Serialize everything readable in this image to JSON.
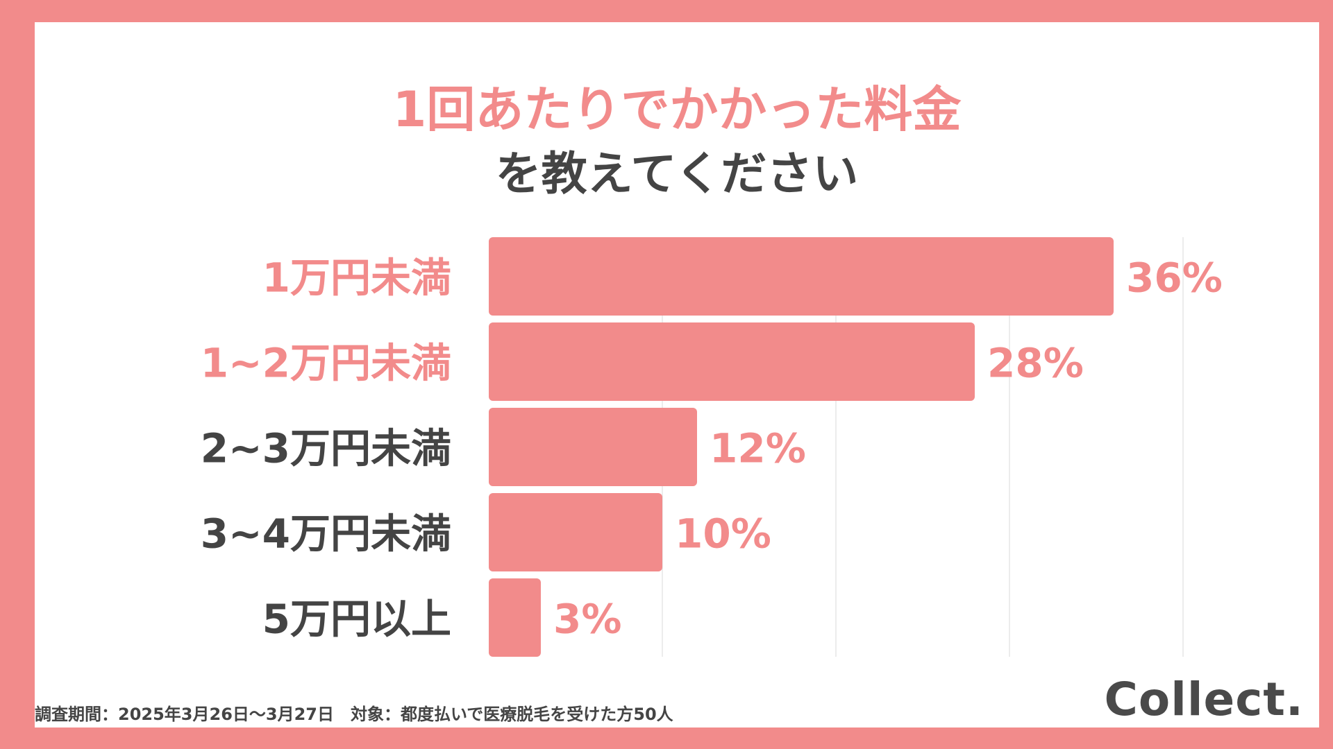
{
  "title_line1": "1回あたりでかかった料金",
  "title_line2": "を教えてください",
  "footer_text": "調査期間：2025年3月26日〜3月27日　対象：都度払いで医療脱毛を受けた方50人",
  "logo_text": "Collect.",
  "colors": {
    "accent": "#f28b8b",
    "text_dark": "#444444",
    "bar": "#f28b8b",
    "background": "#ffffff",
    "frame": "#f28b8b"
  },
  "chart_data": {
    "type": "bar",
    "orientation": "horizontal",
    "title": "1回あたりでかかった料金を教えてください",
    "categories": [
      "1万円未満",
      "1~2万円未満",
      "2~3万円未満",
      "3~4万円未満",
      "5万円以上"
    ],
    "values": [
      36,
      28,
      12,
      10,
      3
    ],
    "value_labels": [
      "36%",
      "28%",
      "12%",
      "10%",
      "3%"
    ],
    "highlighted_categories": [
      "1万円未満",
      "1~2万円未満"
    ],
    "unit": "%",
    "xlim": [
      0,
      40
    ],
    "gridlines": [
      10,
      20,
      30,
      40
    ],
    "grid": true,
    "legend": "none"
  }
}
